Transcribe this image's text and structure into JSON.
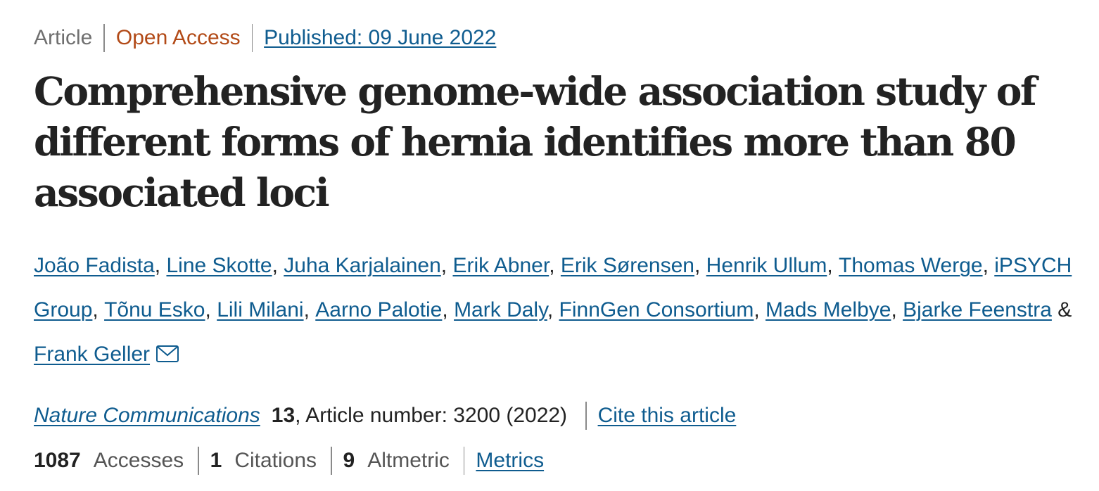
{
  "header": {
    "article_type": "Article",
    "access": "Open Access",
    "published": "Published: 09 June 2022"
  },
  "title": "Comprehensive genome-wide association study of different forms of hernia identifies more than 80 associated loci",
  "authors": [
    "João Fadista",
    "Line Skotte",
    "Juha Karjalainen",
    "Erik Abner",
    "Erik Sørensen",
    "Henrik Ullum",
    "Thomas Werge",
    "iPSYCH Group",
    "Tõnu Esko",
    "Lili Milani",
    "Aarno Palotie",
    "Mark Daly",
    "FinnGen Consortium",
    "Mads Melbye",
    "Bjarke Feenstra",
    "Frank Geller"
  ],
  "authors_separator": ",",
  "authors_last_joiner": "&",
  "corresponding_icon": "envelope-icon",
  "journal": {
    "name": "Nature Communications",
    "volume": "13",
    "article_number": ", Article number: 3200 (2022)",
    "cite_label": "Cite this article"
  },
  "metrics": {
    "accesses_count": "1087",
    "accesses_label": "Accesses",
    "citations_count": "1",
    "citations_label": "Citations",
    "altmetric_count": "9",
    "altmetric_label": "Altmetric",
    "metrics_link": "Metrics"
  },
  "colors": {
    "link": "#0f5c8f",
    "open_access": "#b24a17",
    "muted": "#6f6f6f",
    "text": "#222222"
  }
}
